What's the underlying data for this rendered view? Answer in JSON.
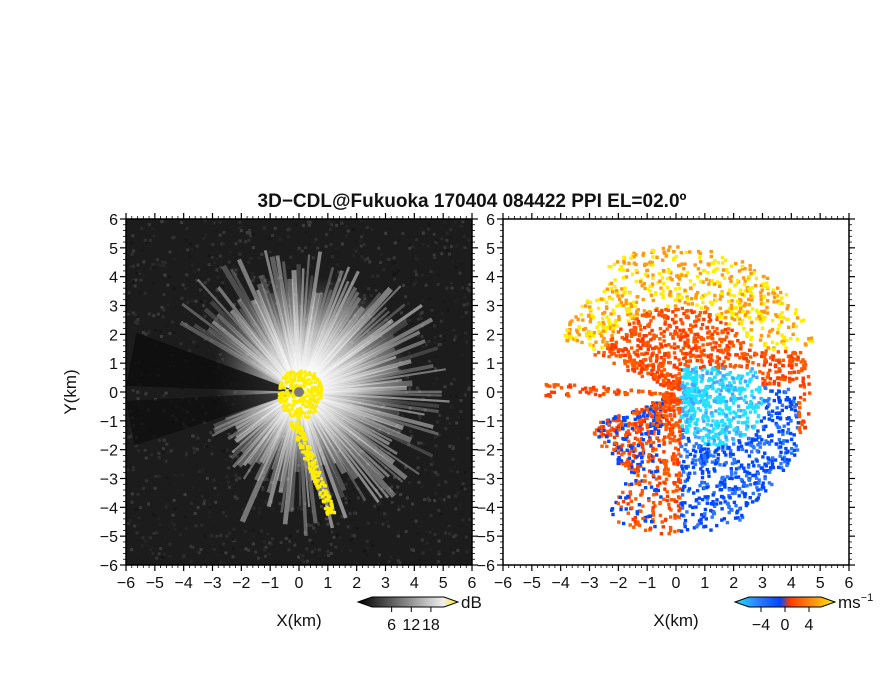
{
  "title": "3D−CDL@Fukuoka 170404 084422 PPI EL=02.0º",
  "chart_data": [
    {
      "type": "heatmap",
      "panel": "reflectivity",
      "xlabel": "X(km)",
      "ylabel": "Y(km)",
      "xlim": [
        -6,
        6
      ],
      "ylim": [
        -6,
        6
      ],
      "xticks": [
        "−6",
        "−5",
        "−4",
        "−3",
        "−2",
        "−1",
        "0",
        "1",
        "2",
        "3",
        "4",
        "5",
        "6"
      ],
      "yticks": [
        "6",
        "5",
        "4",
        "3",
        "2",
        "1",
        "0",
        "−1",
        "−2",
        "−3",
        "−4",
        "−5",
        "−6"
      ],
      "colorbar": {
        "unit": "dB",
        "ticks": [
          "6",
          "12",
          "18"
        ],
        "range": [
          0,
          22
        ]
      },
      "colors": {
        "background": "#1c1c1c",
        "echo": "#ffffff",
        "saturated": "#ffee00"
      }
    },
    {
      "type": "heatmap",
      "panel": "doppler_velocity",
      "xlabel": "X(km)",
      "xlim": [
        -6,
        6
      ],
      "ylim": [
        -6,
        6
      ],
      "xticks": [
        "−6",
        "−5",
        "−4",
        "−3",
        "−2",
        "−1",
        "0",
        "1",
        "2",
        "3",
        "4",
        "5",
        "6"
      ],
      "yticks": [
        "6",
        "5",
        "4",
        "3",
        "2",
        "1",
        "0",
        "−1",
        "−2",
        "−3",
        "−4",
        "−5",
        "−6"
      ],
      "colorbar": {
        "unit": "ms",
        "unit_exponent": "−1",
        "ticks": [
          "−4",
          "0",
          "4"
        ],
        "range": [
          -6,
          6
        ]
      },
      "colors": {
        "toward": "#0047ff",
        "toward_fast": "#22e0ff",
        "away": "#ff5a00",
        "away_fast": "#ffee00"
      }
    }
  ]
}
